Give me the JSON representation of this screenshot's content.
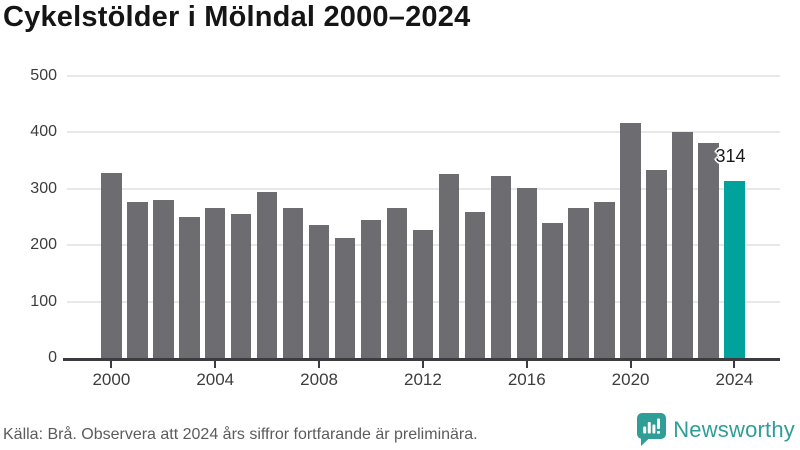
{
  "title": "Cykelstölder i Mölndal 2000–2024",
  "chart_data": {
    "type": "bar",
    "title": "Cykelstölder i Mölndal 2000–2024",
    "categories": [
      2000,
      2001,
      2002,
      2003,
      2004,
      2005,
      2006,
      2007,
      2008,
      2009,
      2010,
      2011,
      2012,
      2013,
      2014,
      2015,
      2016,
      2017,
      2018,
      2019,
      2020,
      2021,
      2022,
      2023,
      2024
    ],
    "values": [
      328,
      276,
      280,
      250,
      266,
      254,
      293,
      266,
      236,
      213,
      244,
      265,
      227,
      325,
      259,
      323,
      301,
      239,
      265,
      276,
      416,
      332,
      400,
      380,
      314
    ],
    "xlabel": "",
    "ylabel": "",
    "ylim": [
      0,
      500
    ],
    "y_ticks": [
      0,
      100,
      200,
      300,
      400,
      500
    ],
    "x_tick_years": [
      2000,
      2004,
      2008,
      2012,
      2016,
      2020,
      2024
    ],
    "grid": true,
    "legend": "none",
    "bar_color": "#6c6c71",
    "highlight_color": "#00a29b",
    "highlight": {
      "category": 2024,
      "value": 314,
      "annotation": "314"
    }
  },
  "footer": {
    "source_note": "Källa: Brå. Observera att 2024 års siffror fortfarande är preliminära.",
    "brand": "Newsworthy",
    "brand_color": "#2f9e97"
  }
}
